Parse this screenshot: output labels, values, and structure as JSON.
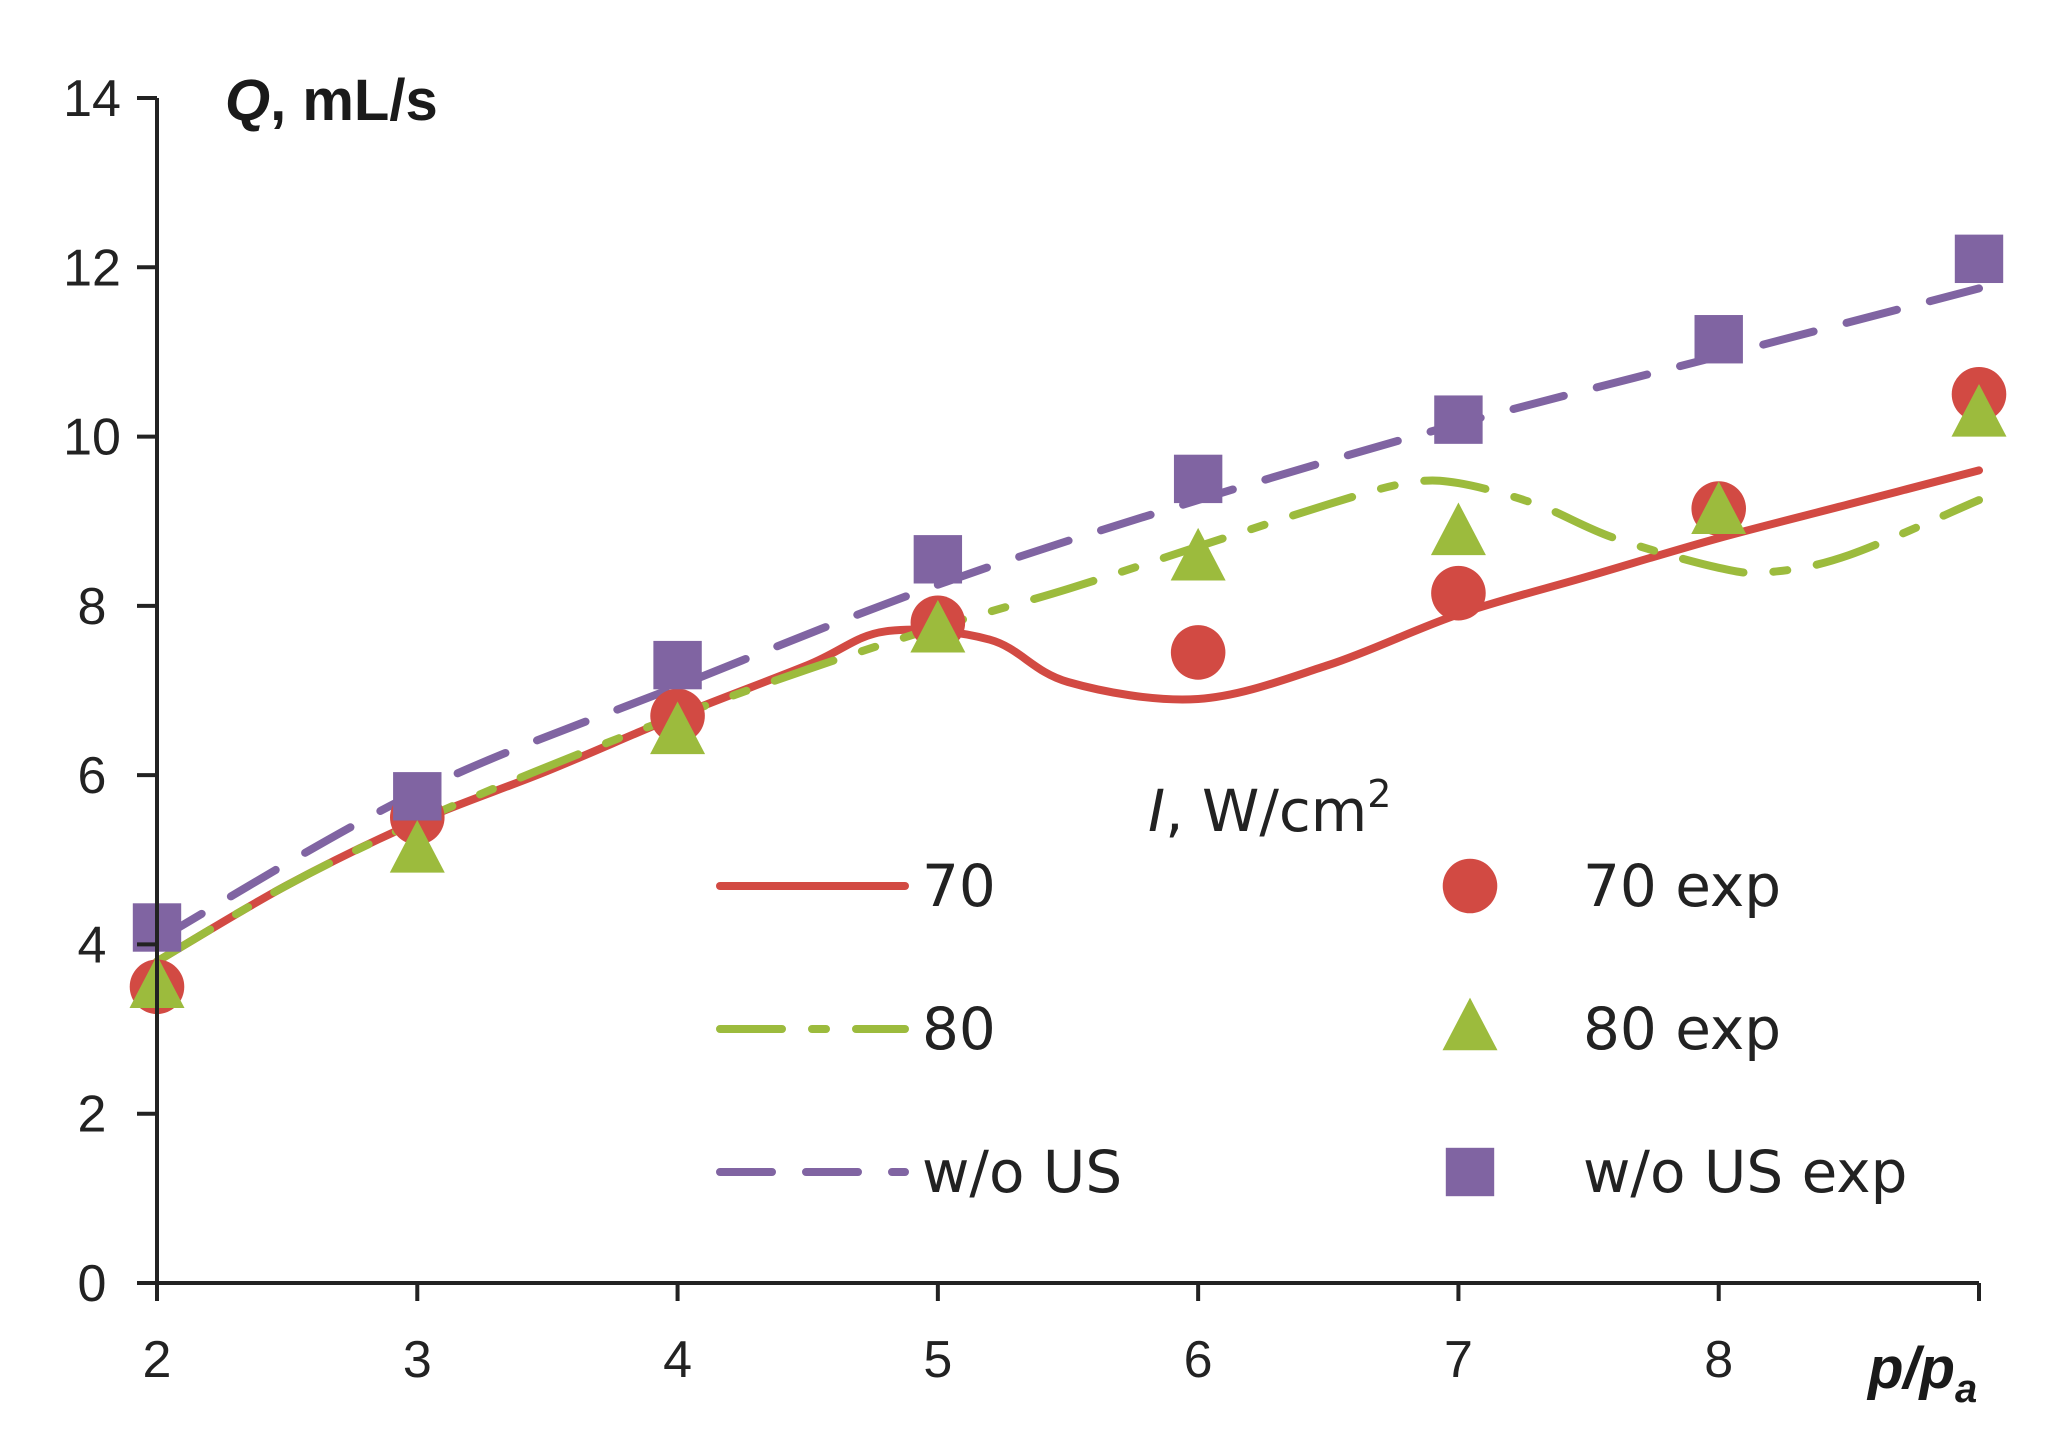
{
  "chart_data": {
    "type": "line",
    "ylabel": {
      "italic": "Q",
      "rest": ", mL/s"
    },
    "xlabel": {
      "main": "p/p",
      "sub": "a"
    },
    "xlim": [
      2,
      9
    ],
    "ylim": [
      0,
      14
    ],
    "x_ticks": [
      "2",
      "3",
      "4",
      "5",
      "6",
      "7",
      "8"
    ],
    "y_ticks": [
      "0",
      "2",
      "4",
      "6",
      "8",
      "10",
      "12",
      "14"
    ],
    "grid": false,
    "legend_placement": "bottom-center",
    "legend_title": {
      "italic": "I",
      "rest": ", W/cm",
      "sup": "2"
    },
    "series": [
      {
        "name": "70",
        "kind": "line",
        "color": "#d24a43",
        "dash": "solid",
        "x": [
          2,
          2.5,
          3,
          3.5,
          4,
          4.5,
          4.8,
          5.2,
          5.5,
          6,
          6.5,
          7,
          7.5,
          8,
          8.5,
          9
        ],
        "y": [
          3.8,
          4.7,
          5.45,
          6.05,
          6.7,
          7.3,
          7.7,
          7.6,
          7.1,
          6.9,
          7.3,
          7.9,
          8.35,
          8.8,
          9.2,
          9.6
        ]
      },
      {
        "name": "80",
        "kind": "line",
        "color": "#9cbb3d",
        "dash": "long-dash",
        "x": [
          2,
          2.5,
          3,
          3.5,
          4,
          4.5,
          5,
          5.5,
          6,
          6.5,
          6.8,
          7,
          7.3,
          7.6,
          8,
          8.2,
          8.5,
          9
        ],
        "y": [
          3.8,
          4.7,
          5.45,
          6.1,
          6.7,
          7.25,
          7.75,
          8.2,
          8.7,
          9.2,
          9.45,
          9.45,
          9.2,
          8.8,
          8.45,
          8.4,
          8.6,
          9.25
        ]
      },
      {
        "name": "w/o US",
        "kind": "line",
        "color": "#8064a2",
        "dash": "dash",
        "x": [
          2,
          3,
          4,
          5,
          6,
          7,
          8,
          9
        ],
        "y": [
          4.05,
          5.8,
          7.05,
          8.25,
          9.25,
          10.15,
          10.95,
          11.75
        ]
      },
      {
        "name": "70 exp",
        "kind": "marker",
        "marker": "circle",
        "color": "#d24a43",
        "x": [
          2,
          3,
          4,
          5,
          6,
          7,
          8,
          9
        ],
        "y": [
          3.5,
          5.5,
          6.7,
          7.8,
          7.45,
          8.15,
          9.15,
          10.5
        ]
      },
      {
        "name": "80 exp",
        "kind": "marker",
        "marker": "triangle",
        "color": "#9cbb3d",
        "x": [
          2,
          3,
          4,
          5,
          6,
          7,
          8,
          9
        ],
        "y": [
          3.5,
          5.1,
          6.5,
          7.7,
          8.55,
          8.85,
          9.1,
          10.25
        ]
      },
      {
        "name": "w/o US exp",
        "kind": "marker",
        "marker": "square",
        "color": "#8064a2",
        "x": [
          2,
          3,
          4,
          5,
          6,
          7,
          8,
          9
        ],
        "y": [
          4.2,
          5.75,
          7.3,
          8.55,
          9.5,
          10.2,
          11.15,
          12.1
        ]
      }
    ]
  }
}
